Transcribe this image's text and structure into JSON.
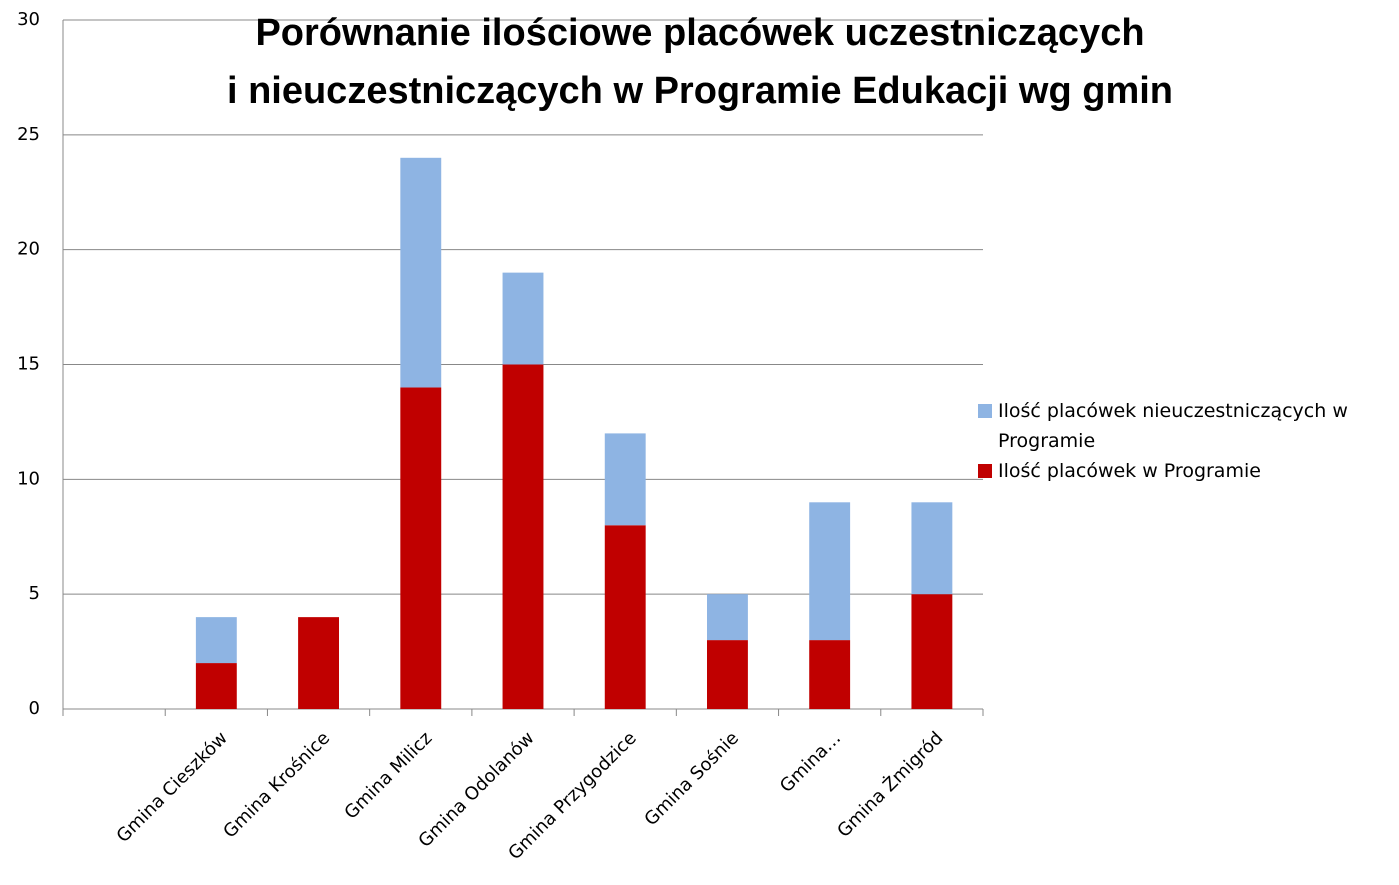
{
  "chart_data": {
    "type": "stacked_bar",
    "title": [
      "Porównanie ilościowe placówek uczestniczących",
      "i nieuczestniczących w Programie Edukacji wg gmin"
    ],
    "categories": [
      null,
      "Gmina Cieszków",
      "Gmina Krośnice",
      "Gmina Milicz",
      "Gmina Odolanów",
      "Gmina Przygodzice",
      "Gmina Sośnie",
      "Gmina…",
      "Gmina Żmigród"
    ],
    "series": [
      {
        "name": "Ilość placówek nieuczestniczących w Programie",
        "color": "#8eb4e3",
        "values": [
          null,
          2,
          0,
          10,
          4,
          4,
          2,
          6,
          4
        ]
      },
      {
        "name": "Ilość placówek w Programie",
        "color": "#c00000",
        "values": [
          null,
          2,
          4,
          14,
          15,
          8,
          3,
          3,
          5
        ]
      }
    ],
    "ylim": [
      0,
      30
    ],
    "yticks": [
      0,
      5,
      10,
      15,
      20,
      25,
      30
    ],
    "grid": true,
    "legend": "right"
  }
}
